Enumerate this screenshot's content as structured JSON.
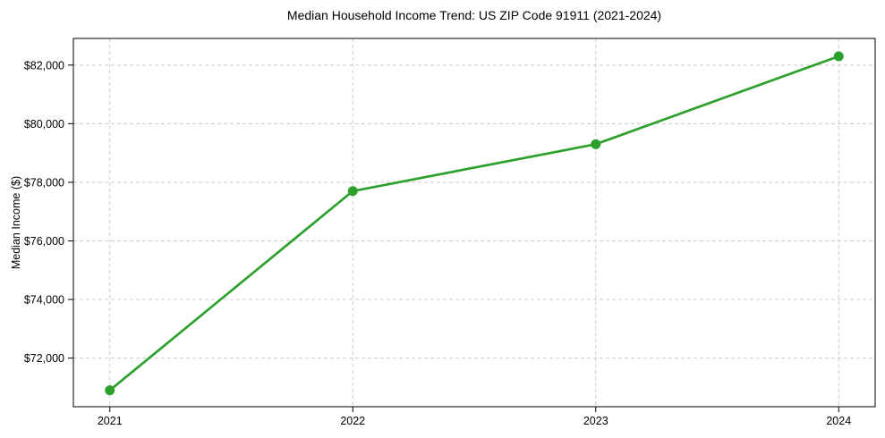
{
  "chart_data": {
    "type": "line",
    "title": "Median Household Income Trend: US ZIP Code 91911 (2021-2024)",
    "xlabel": "",
    "ylabel": "Median Income ($)",
    "x": [
      2021,
      2022,
      2023,
      2024
    ],
    "x_tick_labels": [
      "2021",
      "2022",
      "2023",
      "2024"
    ],
    "values": [
      70900,
      77700,
      79300,
      82300
    ],
    "y_ticks": [
      72000,
      74000,
      76000,
      78000,
      80000,
      82000
    ],
    "y_tick_labels": [
      "$72,000",
      "$74,000",
      "$76,000",
      "$78,000",
      "$80,000",
      "$82,000"
    ],
    "xlim": [
      2020.85,
      2024.15
    ],
    "ylim": [
      70340,
      82910
    ],
    "grid": true,
    "grid_style": "dashed",
    "legend": false,
    "marker": "circle",
    "line_color": "#2ca02c",
    "grid_color": "#cccccc",
    "axis_color": "#000000",
    "text_color": "#000000",
    "background_color": "#ffffff"
  }
}
